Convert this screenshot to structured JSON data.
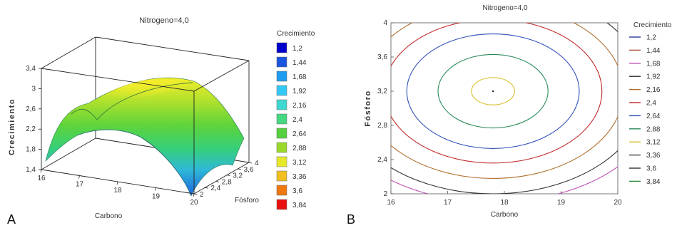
{
  "chart_data": [
    {
      "type": "surface",
      "panel_letter": "A",
      "title": "Nitrogeno=4,0",
      "xlabel": "Carbono",
      "ylabel": "Fósforo",
      "zlabel": "Crecimiento",
      "x_ticks": [
        "16",
        "17",
        "18",
        "19",
        "20"
      ],
      "y_ticks": [
        "2",
        "2,4",
        "2,8",
        "3,2",
        "3,6",
        "4"
      ],
      "z_ticks": [
        "1,4",
        "1,8",
        "2,2",
        "2,6",
        "3",
        "3,4"
      ],
      "xlim": [
        16,
        20
      ],
      "ylim": [
        2,
        4
      ],
      "zlim": [
        1.4,
        3.4
      ],
      "center": {
        "carbono": 17.8,
        "fosforo": 3.2
      },
      "peak_value": 3.25,
      "legend_title": "Crecimiento",
      "legend_levels": [
        "1,2",
        "1,44",
        "1,68",
        "1,92",
        "2,16",
        "2,4",
        "2,64",
        "2,88",
        "3,12",
        "3,36",
        "3,6",
        "3,84"
      ],
      "legend_colors": [
        "#0000cc",
        "#1a55e0",
        "#1e9df0",
        "#33c8f5",
        "#3fd8d0",
        "#44d880",
        "#55d040",
        "#9ad82a",
        "#e8e82a",
        "#f0c020",
        "#f07810",
        "#e81010"
      ],
      "legend_placement": "right"
    },
    {
      "type": "contour",
      "panel_letter": "B",
      "title": "Nitrogeno=4,0",
      "xlabel": "Carbono",
      "ylabel": "Fósforo",
      "x_ticks": [
        "16",
        "17",
        "18",
        "19",
        "20"
      ],
      "y_ticks": [
        "2",
        "2,4",
        "2,8",
        "3,2",
        "3,6",
        "4"
      ],
      "xlim": [
        16,
        20
      ],
      "ylim": [
        2,
        4
      ],
      "center": {
        "carbono": 17.8,
        "fosforo": 3.2
      },
      "legend_title": "Crecimiento",
      "legend_levels": [
        "1,2",
        "1,44",
        "1,68",
        "1,92",
        "2,16",
        "2,4",
        "2,64",
        "2,88",
        "3,12",
        "3,36",
        "3,6",
        "3,84"
      ],
      "legend_colors": [
        "#2a3aa0",
        "#b0503a",
        "#c050b0",
        "#303030",
        "#b07030",
        "#c02828",
        "#3050b8",
        "#2a8a5a",
        "#d8c030",
        "#404040",
        "#303030",
        "#2a8a3a"
      ],
      "contours": [
        {
          "level": 3.12,
          "r": [
            0.38,
            0.16
          ]
        },
        {
          "level": 2.88,
          "r": [
            0.97,
            0.43
          ]
        },
        {
          "level": 2.64,
          "r": [
            1.52,
            0.67
          ]
        },
        {
          "level": 2.4,
          "r": [
            1.92,
            0.84
          ]
        },
        {
          "level": 2.16,
          "r": [
            2.3,
            1.02
          ]
        },
        {
          "level": 1.92,
          "r": [
            2.7,
            1.2
          ]
        },
        {
          "level": 1.68,
          "r": [
            3.0,
            1.3
          ]
        }
      ],
      "legend_placement": "right"
    }
  ]
}
